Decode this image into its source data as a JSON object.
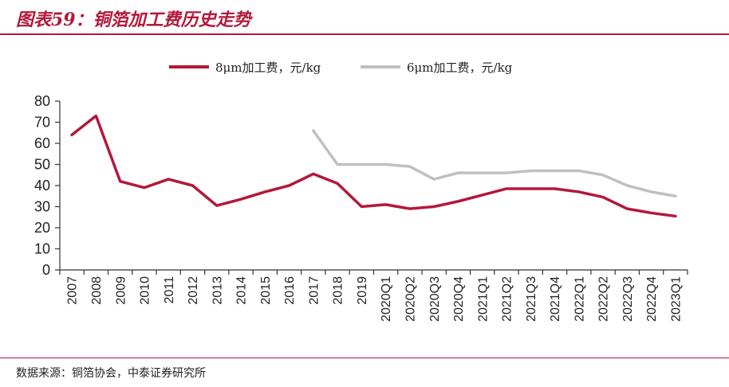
{
  "header": {
    "title": "图表59：铜箔加工费历史走势"
  },
  "footer": {
    "source": "数据来源：铜箔协会，中泰证券研究所"
  },
  "colors": {
    "accent": "#b3183a",
    "series_8um": "#b3183a",
    "series_6um": "#c0c0c0",
    "axis": "#333333"
  },
  "chart_data": {
    "type": "line",
    "title": "",
    "xlabel": "",
    "ylabel": "",
    "ylim": [
      0,
      80
    ],
    "yticks": [
      0,
      10,
      20,
      30,
      40,
      50,
      60,
      70,
      80
    ],
    "grid": false,
    "legend_position": "top-center",
    "categories": [
      "2007",
      "2008",
      "2009",
      "2010",
      "2011",
      "2012",
      "2013",
      "2014",
      "2015",
      "2016",
      "2017",
      "2018",
      "2019",
      "2020Q1",
      "2020Q2",
      "2020Q3",
      "2020Q4",
      "2021Q1",
      "2021Q2",
      "2021Q3",
      "2021Q4",
      "2022Q1",
      "2022Q2",
      "2022Q3",
      "2022Q4",
      "2023Q1"
    ],
    "series": [
      {
        "name": "8μm加工费，元/kg",
        "color": "#b3183a",
        "values": [
          64,
          73,
          42,
          39,
          43,
          40,
          30.5,
          33.5,
          37,
          40,
          45.5,
          41,
          30,
          31,
          29,
          30,
          32.5,
          35.5,
          38.5,
          38.5,
          38.5,
          37,
          34.5,
          29,
          27,
          25.5
        ]
      },
      {
        "name": "6μm加工费，元/kg",
        "color": "#c0c0c0",
        "values": [
          null,
          null,
          null,
          null,
          null,
          null,
          null,
          null,
          null,
          null,
          66,
          50,
          50,
          50,
          49,
          43,
          46,
          46,
          46,
          47,
          47,
          47,
          45,
          40,
          37,
          35
        ]
      }
    ]
  }
}
